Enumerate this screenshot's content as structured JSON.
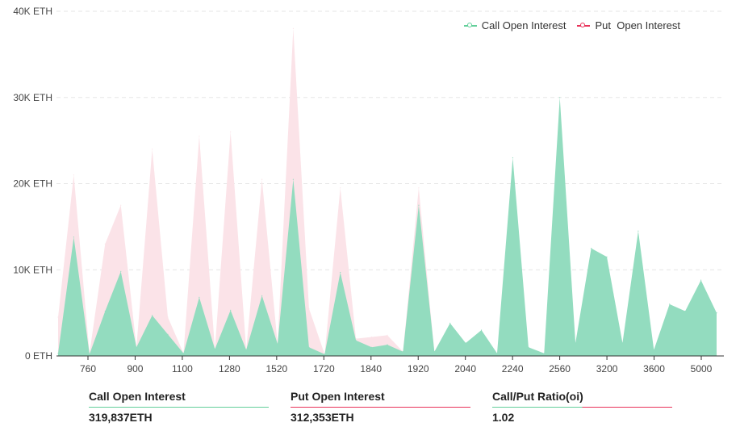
{
  "chart_data": {
    "type": "area",
    "y_ticks": [
      "0 ETH",
      "10K ETH",
      "20K ETH",
      "30K ETH",
      "40K ETH"
    ],
    "ylim": [
      0,
      40000
    ],
    "x_tick_labels": [
      "760",
      "900",
      "1100",
      "1280",
      "1520",
      "1720",
      "1840",
      "1920",
      "2040",
      "2240",
      "2560",
      "3200",
      "3600",
      "5000"
    ],
    "grid": true,
    "legend_position": "top-right",
    "series": [
      {
        "name": "Call Open Interest",
        "color": "#63cf9a",
        "fill": "#93dcbf",
        "values": [
          300,
          13800,
          200,
          5200,
          9800,
          1000,
          4700,
          2500,
          300,
          6800,
          800,
          5300,
          700,
          7000,
          1400,
          20500,
          1000,
          200,
          9700,
          1800,
          1000,
          1300,
          500,
          17500,
          500,
          3800,
          1500,
          3000,
          300,
          23000,
          1000,
          300,
          30000,
          1500,
          12500,
          11500,
          1500,
          14500,
          700,
          6000,
          5200,
          8800,
          5000
        ]
      },
      {
        "name": "Put  Open Interest",
        "color": "#e8335a",
        "fill": "#fbe3e8",
        "values": [
          4500,
          21000,
          300,
          13000,
          17500,
          1000,
          24000,
          4500,
          300,
          25500,
          800,
          26000,
          700,
          20500,
          1400,
          38000,
          5500,
          200,
          19500,
          2000,
          2200,
          2400,
          500,
          19500,
          400,
          500,
          300,
          300,
          200,
          300,
          200,
          200,
          300,
          200,
          300,
          200,
          200,
          300,
          200,
          200,
          200,
          200,
          200
        ]
      }
    ]
  },
  "stats": [
    {
      "label": "Call Open Interest",
      "value": "319,837ETH",
      "color": "#63cf9a"
    },
    {
      "label": "Put Open Interest",
      "value": "312,353ETH",
      "color": "#e8335a"
    },
    {
      "label": "Call/Put Ratio(oi)",
      "value": "1.02",
      "color": "#e8335a",
      "color2": "#63cf9a"
    }
  ]
}
